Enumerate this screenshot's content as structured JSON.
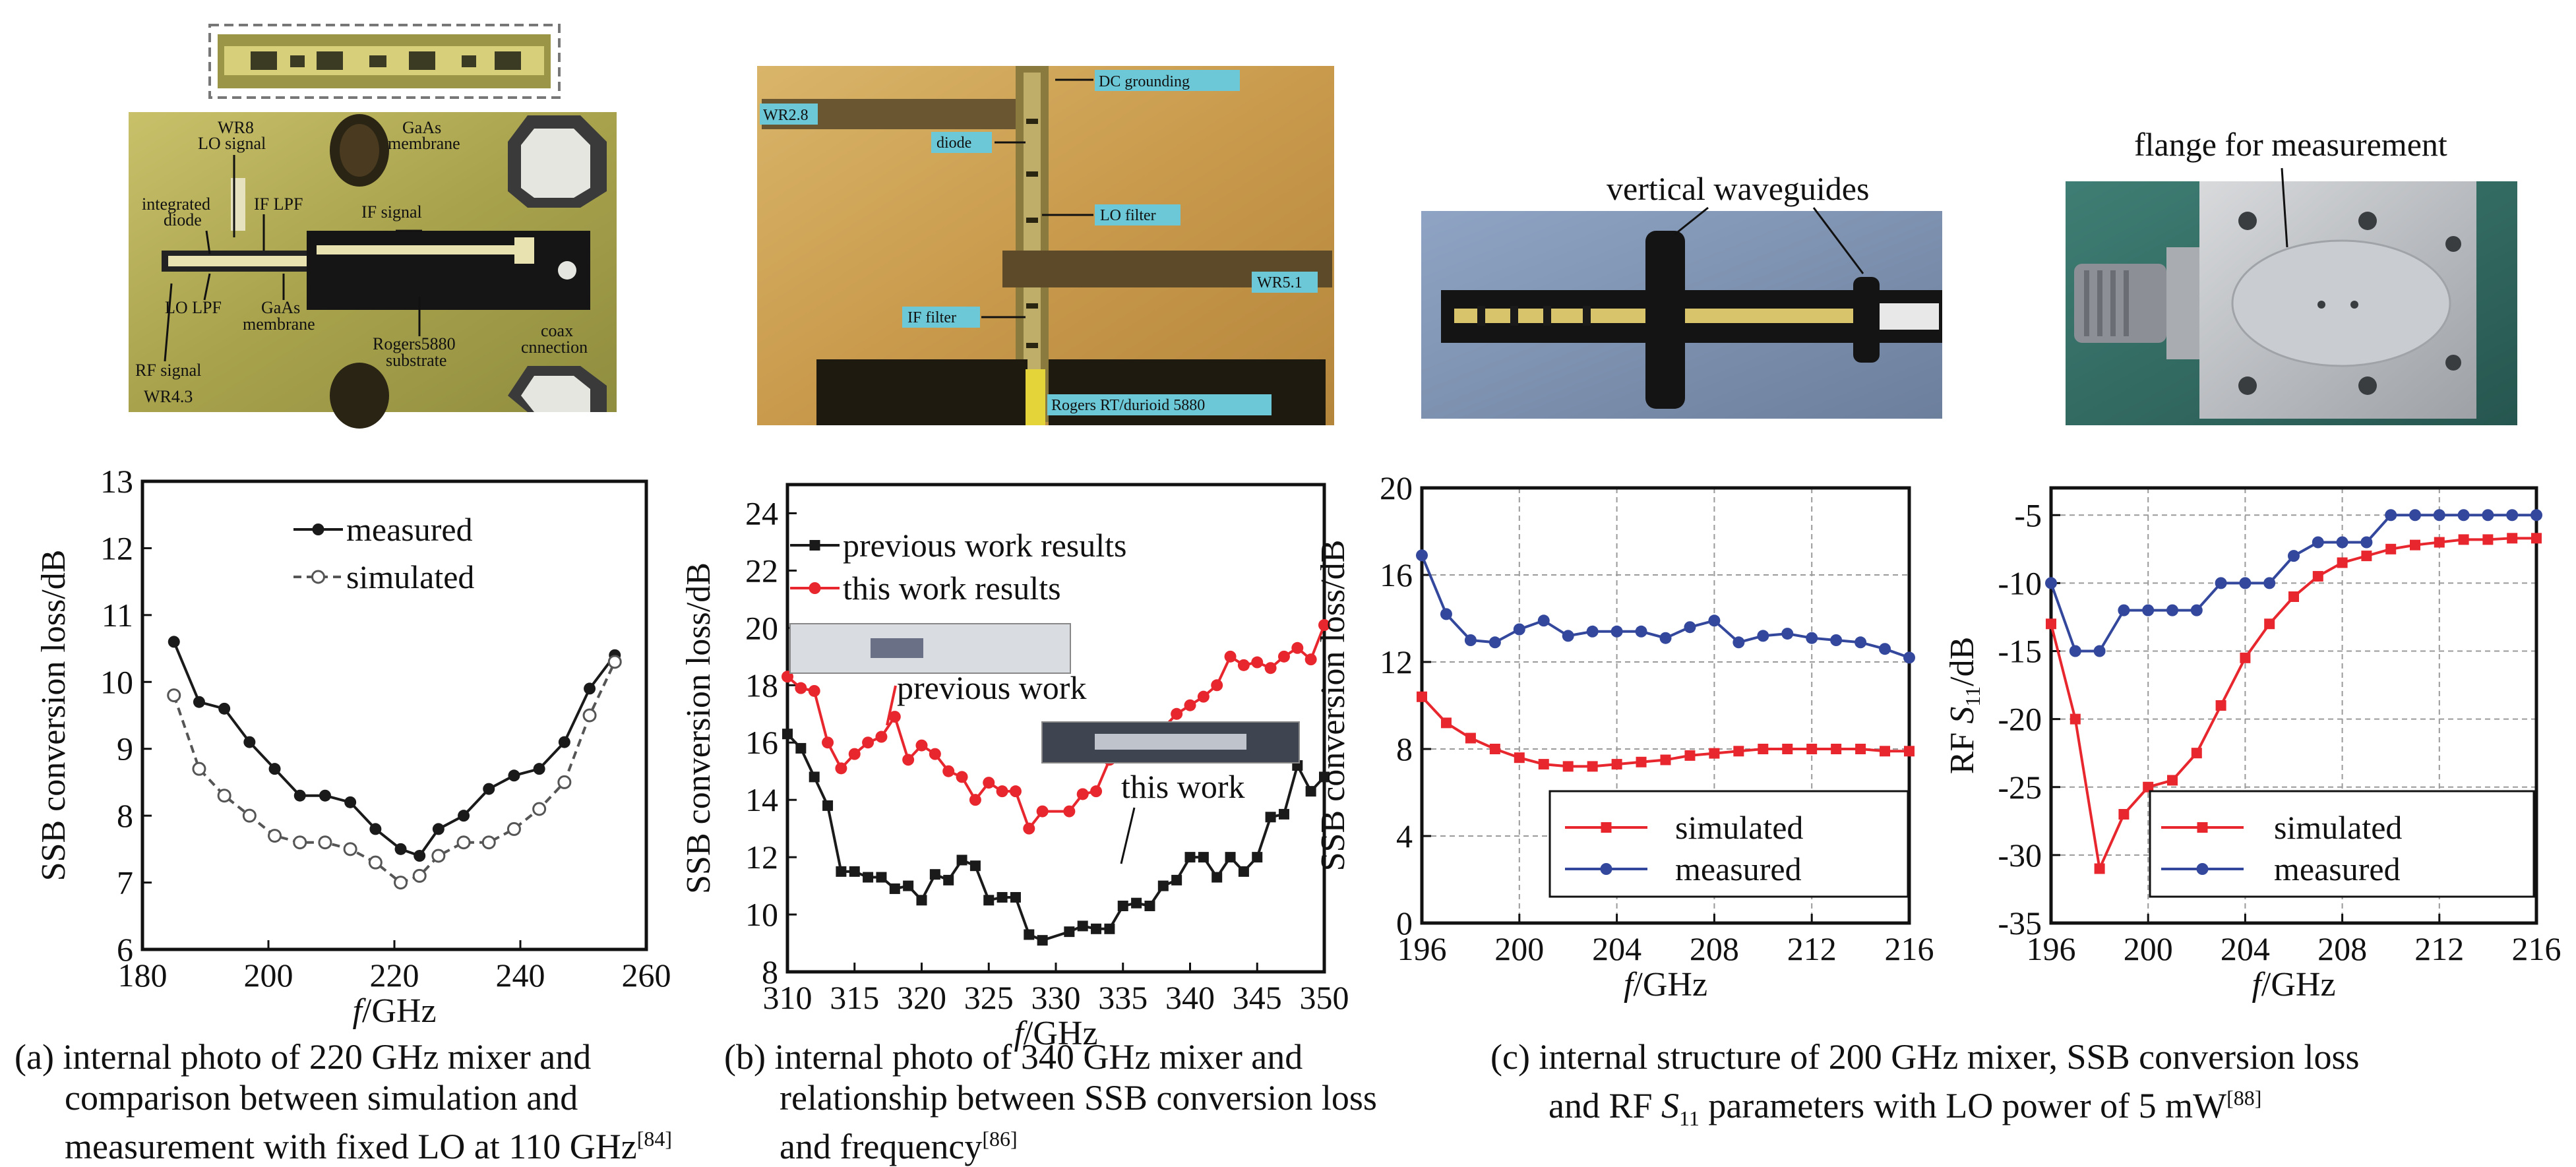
{
  "photos": {
    "a": {
      "labels": [
        "WR8",
        "LO signal",
        "GaAs",
        "membrane",
        "integrated",
        "diode",
        "IF LPF",
        "IF signal",
        "LO LPF",
        "GaAs",
        "membrane",
        "Rogers5880",
        "substrate",
        "coax",
        "cnnection",
        "RF signal",
        "WR4.3"
      ]
    },
    "b": {
      "labels": [
        "WR2.8",
        "DC grounding",
        "diode",
        "LO filter",
        "WR5.1",
        "IF filter",
        "Rogers RT/durioid 5880"
      ]
    },
    "c1": {
      "labels": [
        "vertical waveguides"
      ]
    },
    "c2": {
      "labels": [
        "flange for measurement"
      ]
    }
  },
  "captions": {
    "a": [
      "(a) internal photo of 220 GHz mixer and",
      "comparison between simulation and",
      "measurement with fixed LO at 110 GHz"
    ],
    "a_ref": "[84]",
    "b": [
      "(b) internal photo of 340 GHz mixer and",
      "relationship between SSB conversion loss",
      "and frequency"
    ],
    "b_ref": "[86]",
    "c": [
      "(c) internal structure of 200 GHz mixer, SSB conversion loss",
      "and RF ",
      "S",
      "11",
      " parameters with LO power of 5 mW"
    ],
    "c_ref": "[88]"
  },
  "colors": {
    "red": "#e8262d",
    "blue": "#33479c",
    "black": "#1a1a1a",
    "gray": "#555555"
  },
  "chart_data": [
    {
      "id": "a",
      "type": "line",
      "xlabel": "f/GHz",
      "ylabel": "SSB conversion loss/dB",
      "xlim": [
        180,
        260
      ],
      "ylim": [
        6,
        13
      ],
      "xticks": [
        180,
        200,
        220,
        240,
        260
      ],
      "yticks": [
        6,
        7,
        8,
        9,
        10,
        11,
        12,
        13
      ],
      "legend": "top-center",
      "series": [
        {
          "name": "measured",
          "style": "solid-filled",
          "color": "#1a1a1a",
          "x": [
            185,
            189,
            193,
            197,
            201,
            205,
            209,
            213,
            217,
            221,
            224,
            227,
            231,
            235,
            239,
            243,
            247,
            251,
            255
          ],
          "y": [
            10.6,
            9.7,
            9.6,
            9.1,
            8.7,
            8.3,
            8.3,
            8.2,
            7.8,
            7.5,
            7.4,
            7.8,
            8.0,
            8.4,
            8.6,
            8.7,
            9.1,
            9.9,
            10.4
          ]
        },
        {
          "name": "simulated",
          "style": "dashed-open",
          "color": "#555555",
          "x": [
            185,
            189,
            193,
            197,
            201,
            205,
            209,
            213,
            217,
            221,
            224,
            227,
            231,
            235,
            239,
            243,
            247,
            251,
            255
          ],
          "y": [
            9.8,
            8.7,
            8.3,
            8.0,
            7.7,
            7.6,
            7.6,
            7.5,
            7.3,
            7.0,
            7.1,
            7.4,
            7.6,
            7.6,
            7.8,
            8.1,
            8.5,
            9.5,
            10.3
          ]
        }
      ]
    },
    {
      "id": "b",
      "type": "line",
      "xlabel": "f/GHz",
      "ylabel": "SSB conversion loss/dB",
      "xlim": [
        310,
        350
      ],
      "ylim": [
        8,
        25
      ],
      "xticks": [
        310,
        315,
        320,
        325,
        330,
        335,
        340,
        345,
        350
      ],
      "yticks": [
        8,
        10,
        12,
        14,
        16,
        18,
        20,
        22,
        24
      ],
      "legend": "top-left",
      "annotations": [
        "previous work",
        "this work"
      ],
      "series": [
        {
          "name": "previous work results",
          "marker": "square",
          "color": "#1a1a1a",
          "x": [
            310,
            311,
            312,
            313,
            314,
            315,
            316,
            317,
            318,
            319,
            320,
            321,
            322,
            323,
            324,
            325,
            326,
            327,
            328,
            329,
            331,
            332,
            333,
            334,
            335,
            336,
            337,
            338,
            339,
            340,
            341,
            342,
            343,
            344,
            345,
            346,
            347,
            348,
            349,
            350
          ],
          "y": [
            16.3,
            15.8,
            14.8,
            13.8,
            11.5,
            11.5,
            11.3,
            11.3,
            10.9,
            11.0,
            10.5,
            11.4,
            11.2,
            11.9,
            11.7,
            10.5,
            10.6,
            10.6,
            9.3,
            9.1,
            9.4,
            9.6,
            9.5,
            9.5,
            10.3,
            10.4,
            10.3,
            11.0,
            11.2,
            12.0,
            12.0,
            11.3,
            12.0,
            11.5,
            12.0,
            13.4,
            13.5,
            15.2,
            14.3,
            14.8
          ]
        },
        {
          "name": "this work results",
          "marker": "circle",
          "color": "#e8262d",
          "x": [
            310,
            311,
            312,
            313,
            314,
            315,
            316,
            317,
            318,
            319,
            320,
            321,
            322,
            323,
            324,
            325,
            326,
            327,
            328,
            329,
            331,
            332,
            333,
            334,
            335,
            336,
            337,
            338,
            339,
            340,
            341,
            342,
            343,
            344,
            345,
            346,
            347,
            348,
            349,
            350
          ],
          "y": [
            18.3,
            17.9,
            17.8,
            16.0,
            15.1,
            15.6,
            16.0,
            16.2,
            16.9,
            15.4,
            15.9,
            15.6,
            15.0,
            14.8,
            14.0,
            14.6,
            14.3,
            14.3,
            13.0,
            13.6,
            13.6,
            14.2,
            14.3,
            15.4,
            15.6,
            15.8,
            16.0,
            16.5,
            17.0,
            17.3,
            17.6,
            18.0,
            19.0,
            18.7,
            18.8,
            18.6,
            19.0,
            19.3,
            18.9,
            20.1
          ]
        }
      ]
    },
    {
      "id": "c-loss",
      "type": "line",
      "xlabel": "f/GHz",
      "ylabel": "SSB conversion loss/dB",
      "xlim": [
        196,
        216
      ],
      "ylim": [
        0,
        20
      ],
      "xticks": [
        196,
        200,
        204,
        208,
        212,
        216
      ],
      "yticks": [
        0,
        4,
        8,
        12,
        16,
        20
      ],
      "grid": true,
      "legend": "bottom-center",
      "series": [
        {
          "name": "simulated",
          "marker": "square",
          "color": "#e8262d",
          "x": [
            196,
            197,
            198,
            199,
            200,
            201,
            202,
            203,
            204,
            205,
            206,
            207,
            208,
            209,
            210,
            211,
            212,
            213,
            214,
            215,
            216
          ],
          "y": [
            10.4,
            9.2,
            8.5,
            8.0,
            7.6,
            7.3,
            7.2,
            7.2,
            7.3,
            7.4,
            7.5,
            7.7,
            7.8,
            7.9,
            8.0,
            8.0,
            8.0,
            8.0,
            8.0,
            7.9,
            7.9
          ]
        },
        {
          "name": "measured",
          "marker": "circle",
          "color": "#33479c",
          "x": [
            196,
            197,
            198,
            199,
            200,
            201,
            202,
            203,
            204,
            205,
            206,
            207,
            208,
            209,
            210,
            211,
            212,
            213,
            214,
            215,
            216
          ],
          "y": [
            16.9,
            14.2,
            13.0,
            12.9,
            13.5,
            13.9,
            13.2,
            13.4,
            13.4,
            13.4,
            13.1,
            13.6,
            13.9,
            12.9,
            13.2,
            13.3,
            13.1,
            13.0,
            12.9,
            12.6,
            12.2
          ]
        }
      ]
    },
    {
      "id": "c-s11",
      "type": "line",
      "xlabel": "f/GHz",
      "ylabel": "RF S11/dB",
      "xlim": [
        196,
        216
      ],
      "ylim": [
        -35,
        -3
      ],
      "xticks": [
        196,
        200,
        204,
        208,
        212,
        216
      ],
      "yticks": [
        -35,
        -30,
        -25,
        -20,
        -15,
        -10,
        -5
      ],
      "grid": true,
      "legend": "bottom-center",
      "series": [
        {
          "name": "simulated",
          "marker": "square",
          "color": "#e8262d",
          "x": [
            196,
            197,
            198,
            199,
            200,
            201,
            202,
            203,
            204,
            205,
            206,
            207,
            208,
            209,
            210,
            211,
            212,
            213,
            214,
            215,
            216
          ],
          "y": [
            -13.0,
            -20.0,
            -31.0,
            -27.0,
            -25.0,
            -24.5,
            -22.5,
            -19.0,
            -15.5,
            -13.0,
            -11.0,
            -9.5,
            -8.5,
            -8.0,
            -7.5,
            -7.2,
            -7.0,
            -6.8,
            -6.8,
            -6.7,
            -6.7
          ]
        },
        {
          "name": "measured",
          "marker": "circle",
          "color": "#33479c",
          "x": [
            196,
            197,
            198,
            199,
            200,
            201,
            202,
            203,
            204,
            205,
            206,
            207,
            208,
            209,
            210,
            211,
            212,
            213,
            214,
            215,
            216
          ],
          "y": [
            -10.0,
            -15.0,
            -15.0,
            -12.0,
            -12.0,
            -12.0,
            -12.0,
            -10.0,
            -10.0,
            -10.0,
            -8.0,
            -7.0,
            -7.0,
            -7.0,
            -5.0,
            -5.0,
            -5.0,
            -5.0,
            -5.0,
            -5.0,
            -5.0
          ]
        }
      ]
    }
  ]
}
